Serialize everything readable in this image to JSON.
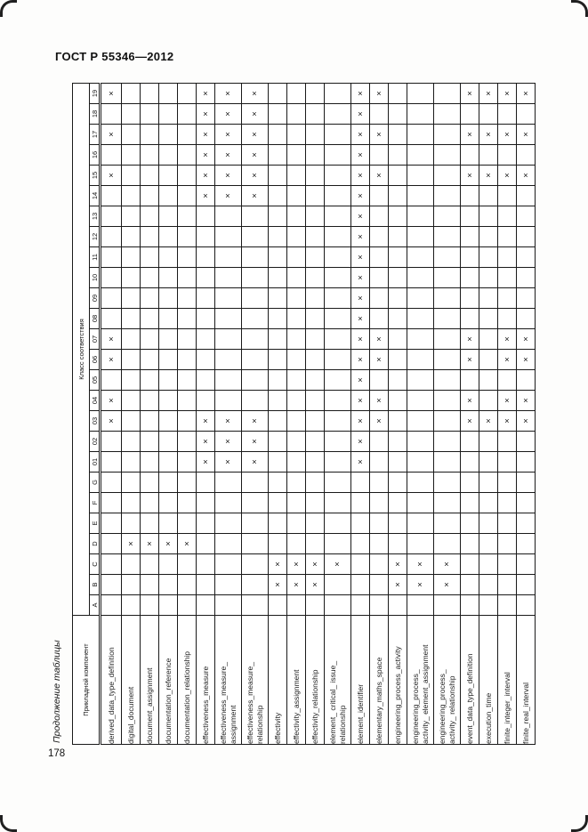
{
  "page": {
    "doc_title": "ГОСТ Р 55346—2012",
    "continuation_label": "Продолжение таблицы",
    "page_number": "178"
  },
  "table": {
    "corner_header": "Прикладной компонент",
    "class_header": "Класс соответствия",
    "mark": "×",
    "classes": [
      "A",
      "B",
      "C",
      "D",
      "E",
      "F",
      "G",
      "01",
      "02",
      "03",
      "04",
      "05",
      "06",
      "07",
      "08",
      "09",
      "10",
      "11",
      "12",
      "13",
      "14",
      "15",
      "16",
      "17",
      "18",
      "19"
    ],
    "components": [
      {
        "label_lines": [
          "derived_data_type_definition"
        ],
        "marks": [
          "03",
          "04",
          "06",
          "07",
          "15",
          "17",
          "19"
        ]
      },
      {
        "label_lines": [
          "digital_document"
        ],
        "marks": [
          "D"
        ]
      },
      {
        "label_lines": [
          "document_assignment"
        ],
        "marks": [
          "D"
        ]
      },
      {
        "label_lines": [
          "documentation_reference"
        ],
        "marks": [
          "D"
        ]
      },
      {
        "label_lines": [
          "documentation_relationship"
        ],
        "marks": [
          "D"
        ]
      },
      {
        "label_lines": [
          "effectiveness_measure"
        ],
        "marks": [
          "01",
          "02",
          "03",
          "14",
          "15",
          "16",
          "17",
          "18",
          "19"
        ]
      },
      {
        "label_lines": [
          "effectiveness_measure_",
          "assignment"
        ],
        "marks": [
          "01",
          "02",
          "03",
          "14",
          "15",
          "16",
          "17",
          "18",
          "19"
        ]
      },
      {
        "label_lines": [
          "effectiveness_measure_",
          "relationship"
        ],
        "marks": [
          "01",
          "02",
          "03",
          "14",
          "15",
          "16",
          "17",
          "18",
          "19"
        ]
      },
      {
        "label_lines": [
          "effectivity"
        ],
        "marks": [
          "B",
          "C"
        ]
      },
      {
        "label_lines": [
          "effectivity_assignment"
        ],
        "marks": [
          "B",
          "C"
        ]
      },
      {
        "label_lines": [
          "effectivity_relationship"
        ],
        "marks": [
          "B",
          "C"
        ]
      },
      {
        "label_lines": [
          "element_ critical_ issue_",
          "relationship"
        ],
        "marks": [
          "C"
        ]
      },
      {
        "label_lines": [
          "element_identifier"
        ],
        "marks": [
          "01",
          "02",
          "03",
          "04",
          "05",
          "06",
          "07",
          "08",
          "09",
          "10",
          "11",
          "12",
          "13",
          "14",
          "15",
          "16",
          "17",
          "18",
          "19"
        ]
      },
      {
        "label_lines": [
          "elementary_maths_space"
        ],
        "marks": [
          "03",
          "04",
          "06",
          "07",
          "15",
          "17",
          "19"
        ]
      },
      {
        "label_lines": [
          "engineering_process_activity"
        ],
        "marks": [
          "B",
          "C"
        ]
      },
      {
        "label_lines": [
          "engineering_process_",
          "activity_ element_assignment"
        ],
        "marks": [
          "B",
          "C"
        ]
      },
      {
        "label_lines": [
          "engineering_process_",
          "activity_ relationship"
        ],
        "marks": [
          "B",
          "C"
        ]
      },
      {
        "label_lines": [
          "event_data_type_definition"
        ],
        "marks": [
          "03",
          "04",
          "06",
          "07",
          "15",
          "17",
          "19"
        ]
      },
      {
        "label_lines": [
          "execution_time"
        ],
        "marks": [
          "03",
          "15",
          "17",
          "19"
        ]
      },
      {
        "label_lines": [
          "finite_integer_interval"
        ],
        "marks": [
          "03",
          "04",
          "06",
          "07",
          "15",
          "17",
          "19"
        ]
      },
      {
        "label_lines": [
          "finite_real_interval"
        ],
        "marks": [
          "03",
          "04",
          "06",
          "07",
          "15",
          "17",
          "19"
        ]
      }
    ]
  }
}
